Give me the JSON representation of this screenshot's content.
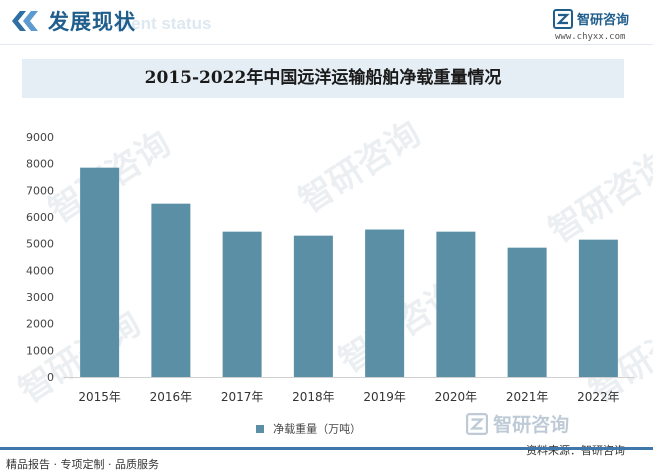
{
  "header": {
    "title": "发展现状",
    "subtitle_bg": "ment status"
  },
  "logo": {
    "name": "智研咨询",
    "url": "www.chyxx.com"
  },
  "colors": {
    "primary": "#1f5e8c",
    "bar": "#5b8fa6",
    "banner_bg": "#e5eef5",
    "footer_line": "#3f78a8"
  },
  "watermark": "智研咨询",
  "chart_data": {
    "type": "bar",
    "title": "2015-2022年中国远洋运输船舶净载重量情况",
    "categories": [
      "2015年",
      "2016年",
      "2017年",
      "2018年",
      "2019年",
      "2020年",
      "2021年",
      "2022年"
    ],
    "series": [
      {
        "name": "净载重量（万吨）",
        "values": [
          7850,
          6500,
          5450,
          5300,
          5530,
          5450,
          4850,
          5150
        ]
      }
    ],
    "ylim": [
      0,
      9000
    ],
    "yticks": [
      0,
      1000,
      2000,
      3000,
      4000,
      5000,
      6000,
      7000,
      8000,
      9000
    ],
    "grid": false,
    "legend_position": "bottom"
  },
  "footer": {
    "left_text": "精品报告 · 专项定制 · 品质服务",
    "source": "资料来源：智研咨询",
    "logo_name": "智研咨询"
  }
}
